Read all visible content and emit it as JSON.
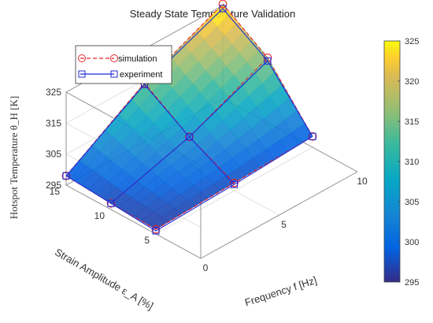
{
  "chart_data": {
    "type": "surface3d",
    "title": "Steady State Temperature Validation",
    "xlabel": "Frequency f [Hz]",
    "ylabel": "Strain Amplitude ε_A [%]",
    "zlabel": "Hotspot Temperature θ_H [K]",
    "x_ticks": [
      "0",
      "5",
      "10"
    ],
    "y_ticks": [
      "5",
      "10",
      "15"
    ],
    "z_ticks": [
      "295",
      "305",
      "315",
      "325"
    ],
    "xlim": [
      0,
      10
    ],
    "ylim": [
      0,
      15
    ],
    "zlim": [
      295,
      325
    ],
    "colorbar": {
      "ticks": [
        "295",
        "300",
        "305",
        "310",
        "315",
        "320",
        "325"
      ],
      "range": [
        295,
        325
      ],
      "colormap": "parula"
    },
    "legend": {
      "position": "top-left",
      "entries": [
        "simulation",
        "experiment"
      ]
    },
    "grid": true,
    "series": [
      {
        "name": "simulation",
        "style": "red dashed, circle markers",
        "color": "#e8242a",
        "x": [
          0,
          5,
          10
        ],
        "y": [
          5,
          10,
          15
        ],
        "z": [
          [
            296.5,
            297.0,
            298.0
          ],
          [
            297.5,
            304.5,
            314.0
          ],
          [
            298.5,
            316.0,
            325.5
          ]
        ]
      },
      {
        "name": "experiment",
        "style": "blue solid, square markers",
        "color": "#1f2ed6",
        "x": [
          0,
          5,
          10
        ],
        "y": [
          5,
          10,
          15
        ],
        "z": [
          [
            296.0,
            297.0,
            298.0
          ],
          [
            297.0,
            304.5,
            313.5
          ],
          [
            298.5,
            315.0,
            324.0
          ]
        ]
      }
    ]
  }
}
